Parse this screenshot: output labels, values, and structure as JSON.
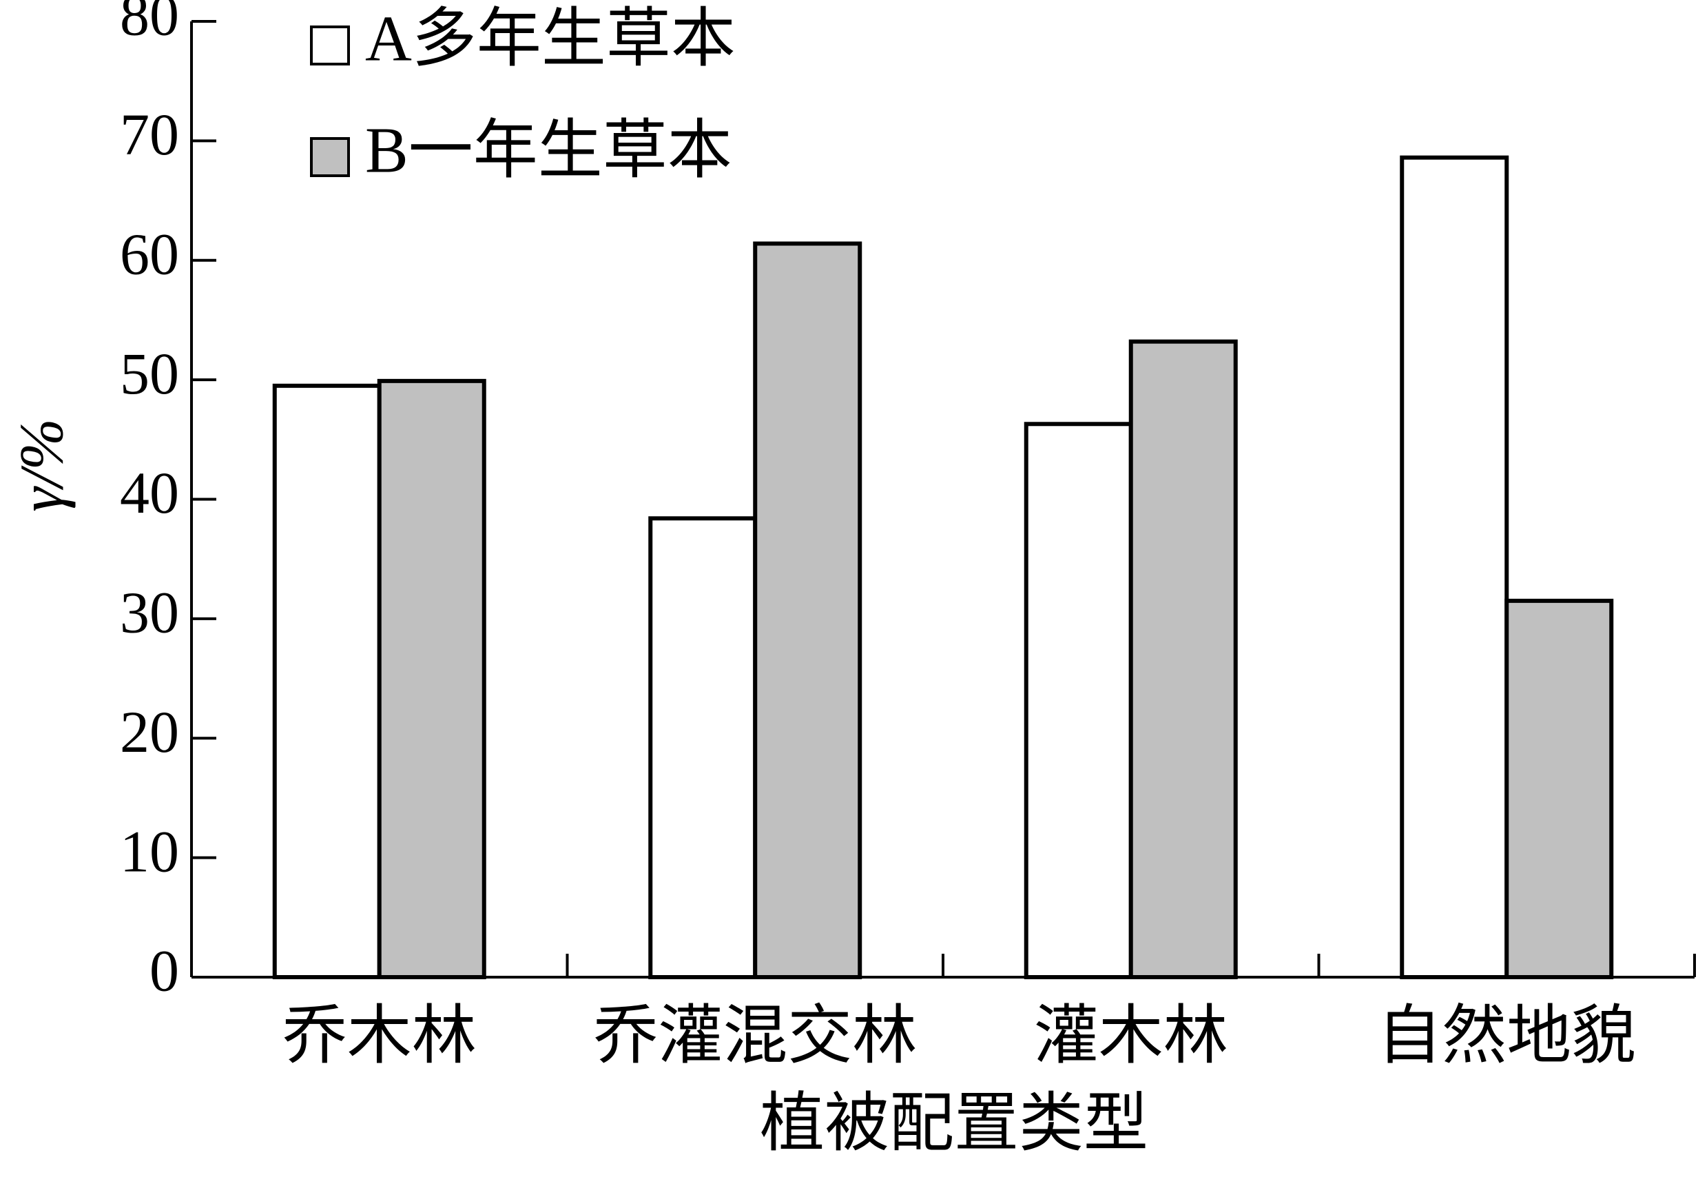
{
  "chart_data": {
    "type": "bar",
    "x_label": "植被配置类型",
    "y_label": "γ/%",
    "categories": [
      "乔木林",
      "乔灌混交林",
      "灌木林",
      "自然地貌"
    ],
    "series": [
      {
        "name": "A多年生草本",
        "color": "#ffffff",
        "values": [
          49.5,
          38.4,
          46.3,
          68.6
        ]
      },
      {
        "name": "B一年生草本",
        "color": "#c0c0c0",
        "values": [
          49.9,
          61.4,
          53.2,
          31.5
        ]
      }
    ],
    "ylim": [
      0,
      80
    ],
    "yticks": [
      0,
      10,
      20,
      30,
      40,
      50,
      60,
      70,
      80
    ],
    "legend": "upper left"
  }
}
